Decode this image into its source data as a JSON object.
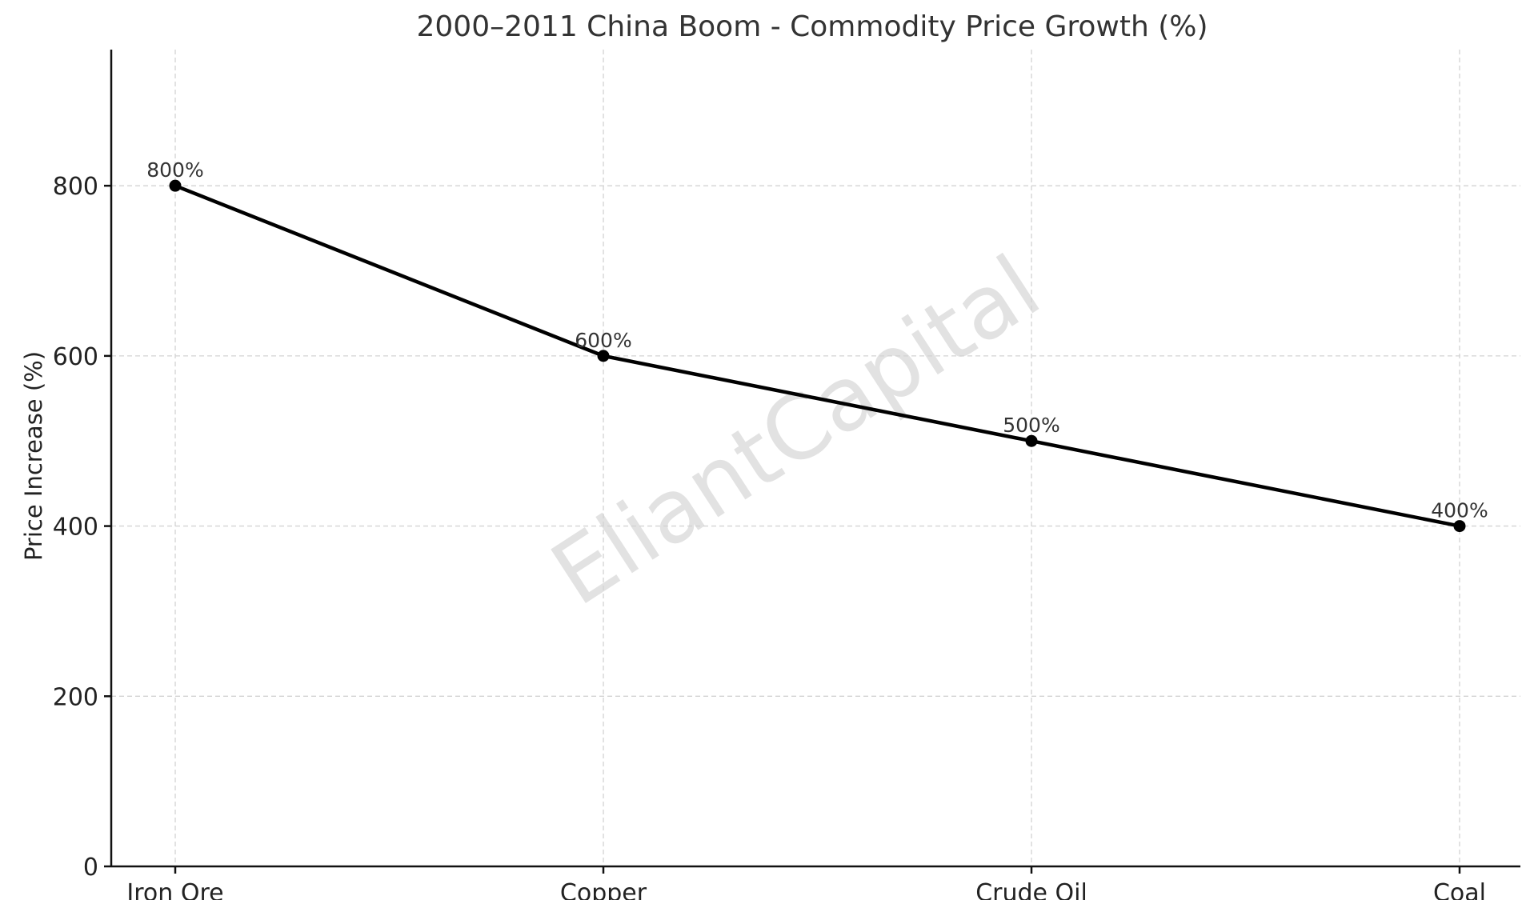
{
  "chart_data": {
    "type": "line",
    "title": "2000–2011 China Boom - Commodity Price Growth (%)",
    "xlabel": "",
    "ylabel": "Price Increase (%)",
    "categories": [
      "Iron Ore",
      "Copper",
      "Crude Oil",
      "Coal"
    ],
    "series": [
      {
        "values": [
          800,
          600,
          500,
          400
        ]
      }
    ],
    "data_labels": [
      "800%",
      "600%",
      "500%",
      "400%"
    ],
    "ylim": [
      0,
      960
    ],
    "yticks": [
      0,
      200,
      400,
      600,
      800
    ],
    "grid": true,
    "line_color": "#000000",
    "watermark": "EliantCapital"
  }
}
